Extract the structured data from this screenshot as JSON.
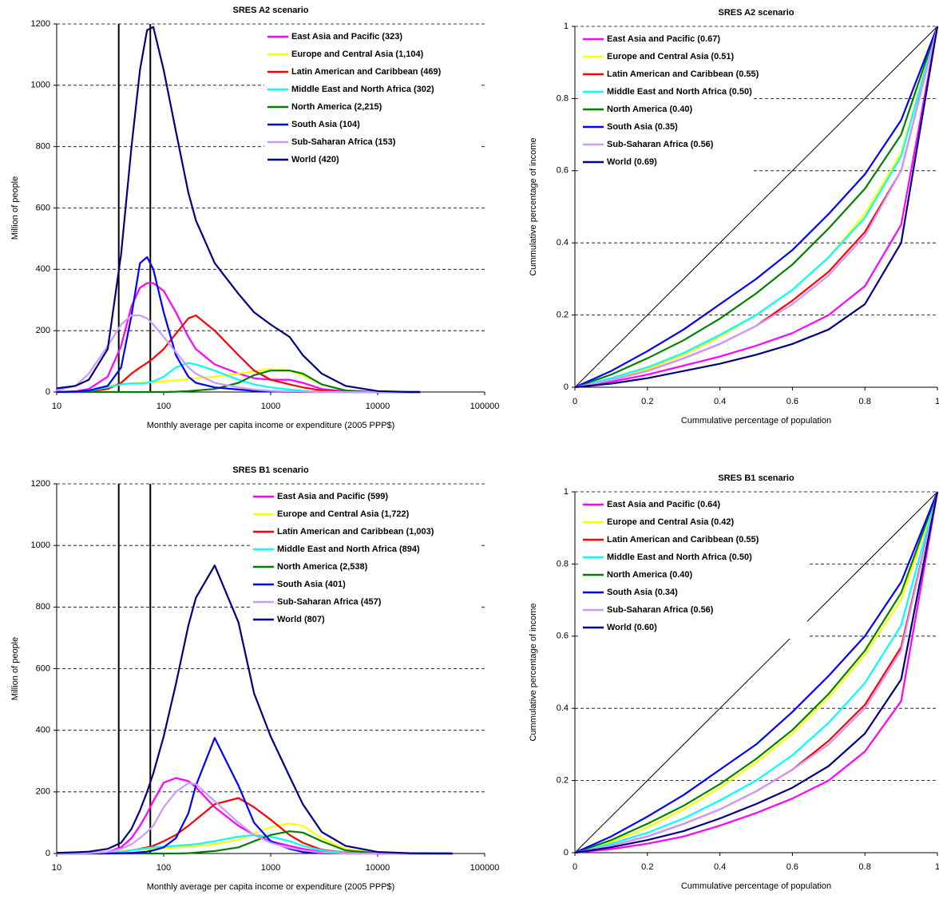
{
  "chart_data": [
    {
      "type": "line",
      "title": "SRES A2 scenario",
      "x_label": "Monthly average per capita income or expenditure (2005 PPP$)",
      "y_label": "Million of people",
      "log_x": true,
      "xlim": [
        10,
        100000
      ],
      "ylim": [
        0,
        1200
      ],
      "xticks": [
        10,
        100,
        1000,
        10000,
        100000
      ],
      "yticks": [
        0,
        200,
        400,
        600,
        800,
        1000,
        1200
      ],
      "grid": true,
      "legend": "upper right",
      "vlines": [
        38,
        75
      ],
      "x": [
        10,
        15,
        20,
        30,
        40,
        50,
        60,
        70,
        80,
        100,
        130,
        170,
        200,
        300,
        500,
        700,
        1000,
        1500,
        2000,
        3000,
        5000,
        10000,
        20000,
        25000
      ],
      "series": [
        {
          "name": "East Asia and Pacific (323)",
          "color": "#ff00ff",
          "values": [
            0,
            2,
            10,
            50,
            150,
            280,
            340,
            355,
            355,
            330,
            260,
            180,
            140,
            90,
            60,
            45,
            40,
            40,
            30,
            10,
            2,
            0,
            0,
            0
          ]
        },
        {
          "name": "Europe and Central Asia (1,104)",
          "color": "#ffff00",
          "values": [
            0,
            0,
            5,
            20,
            25,
            28,
            30,
            30,
            32,
            35,
            38,
            42,
            45,
            50,
            60,
            68,
            75,
            70,
            55,
            25,
            5,
            0,
            0,
            0
          ]
        },
        {
          "name": "Latin American and Caribbean (469)",
          "color": "#ff0000",
          "values": [
            0,
            0,
            2,
            10,
            30,
            60,
            80,
            95,
            110,
            140,
            190,
            240,
            250,
            200,
            120,
            70,
            40,
            25,
            15,
            5,
            1,
            0,
            0,
            0
          ]
        },
        {
          "name": "Middle East and North Africa (302)",
          "color": "#00ffff",
          "values": [
            0,
            0,
            5,
            15,
            25,
            28,
            28,
            30,
            35,
            50,
            80,
            95,
            90,
            70,
            40,
            25,
            15,
            8,
            4,
            1,
            0,
            0,
            0,
            0
          ]
        },
        {
          "name": "North America (2,215)",
          "color": "#008000",
          "values": [
            0,
            0,
            0,
            0,
            0,
            0,
            0,
            0,
            0,
            0,
            1,
            3,
            5,
            10,
            30,
            55,
            70,
            70,
            60,
            25,
            5,
            0,
            0,
            0
          ]
        },
        {
          "name": "South Asia (104)",
          "color": "#0000ff",
          "values": [
            0,
            2,
            5,
            20,
            80,
            250,
            420,
            440,
            400,
            260,
            120,
            50,
            30,
            15,
            8,
            4,
            2,
            1,
            0,
            0,
            0,
            0,
            0,
            0
          ]
        },
        {
          "name": "Sub-Saharan Africa (153)",
          "color": "#cc99ff",
          "values": [
            5,
            20,
            60,
            150,
            220,
            250,
            250,
            240,
            220,
            180,
            130,
            80,
            60,
            30,
            15,
            8,
            4,
            2,
            1,
            0,
            0,
            0,
            0,
            0
          ]
        },
        {
          "name": "World (420)",
          "color": "#000080",
          "values": [
            12,
            20,
            40,
            140,
            450,
            800,
            1050,
            1180,
            1190,
            1050,
            850,
            650,
            560,
            420,
            320,
            260,
            220,
            180,
            120,
            60,
            20,
            3,
            0,
            0
          ]
        }
      ]
    },
    {
      "type": "line",
      "title": "SRES A2 scenario",
      "x_label": "Cummulative percentage of population",
      "y_label": "Cummulative percentage of income",
      "log_x": false,
      "xlim": [
        0,
        1
      ],
      "ylim": [
        0,
        1
      ],
      "xticks": [
        0,
        0.2,
        0.4,
        0.6,
        0.8,
        1
      ],
      "yticks": [
        0,
        0.2,
        0.4,
        0.6,
        0.8,
        1
      ],
      "grid": true,
      "legend": "upper left",
      "equality_line": true,
      "x": [
        0,
        0.1,
        0.2,
        0.3,
        0.4,
        0.5,
        0.6,
        0.7,
        0.8,
        0.9,
        1
      ],
      "series": [
        {
          "name": "East Asia and Pacific (0.67)",
          "color": "#ff00ff",
          "values": [
            0,
            0.015,
            0.035,
            0.06,
            0.085,
            0.115,
            0.15,
            0.2,
            0.28,
            0.45,
            1
          ]
        },
        {
          "name": "Europe and Central Asia (0.51)",
          "color": "#ffff00",
          "values": [
            0,
            0.02,
            0.05,
            0.09,
            0.14,
            0.2,
            0.27,
            0.36,
            0.48,
            0.65,
            1
          ]
        },
        {
          "name": "Latin American and Caribbean (0.55)",
          "color": "#ff0000",
          "values": [
            0,
            0.02,
            0.045,
            0.08,
            0.12,
            0.17,
            0.24,
            0.32,
            0.43,
            0.6,
            1
          ]
        },
        {
          "name": "Middle East and North Africa (0.50)",
          "color": "#00ffff",
          "values": [
            0,
            0.025,
            0.055,
            0.095,
            0.145,
            0.2,
            0.27,
            0.36,
            0.47,
            0.64,
            1
          ]
        },
        {
          "name": "North America (0.40)",
          "color": "#008000",
          "values": [
            0,
            0.035,
            0.08,
            0.13,
            0.19,
            0.26,
            0.34,
            0.44,
            0.55,
            0.7,
            1
          ]
        },
        {
          "name": "South Asia (0.35)",
          "color": "#0000ff",
          "values": [
            0,
            0.045,
            0.1,
            0.16,
            0.23,
            0.3,
            0.38,
            0.48,
            0.59,
            0.74,
            1
          ]
        },
        {
          "name": "Sub-Saharan Africa (0.56)",
          "color": "#cc99ff",
          "values": [
            0,
            0.02,
            0.045,
            0.08,
            0.12,
            0.17,
            0.23,
            0.31,
            0.42,
            0.6,
            1
          ]
        },
        {
          "name": "World (0.69)",
          "color": "#000080",
          "values": [
            0,
            0.01,
            0.025,
            0.045,
            0.065,
            0.09,
            0.12,
            0.16,
            0.23,
            0.4,
            1
          ]
        }
      ]
    },
    {
      "type": "line",
      "title": "SRES B1 scenario",
      "x_label": "Monthly average per capita income or expenditure (2005 PPP$)",
      "y_label": "Million of people",
      "log_x": true,
      "xlim": [
        10,
        100000
      ],
      "ylim": [
        0,
        1200
      ],
      "xticks": [
        10,
        100,
        1000,
        10000,
        100000
      ],
      "yticks": [
        0,
        200,
        400,
        600,
        800,
        1000,
        1200
      ],
      "grid": true,
      "legend": "upper right",
      "vlines": [
        38,
        75
      ],
      "x": [
        10,
        15,
        20,
        30,
        40,
        50,
        60,
        70,
        80,
        100,
        130,
        170,
        200,
        300,
        500,
        700,
        1000,
        1500,
        2000,
        3000,
        5000,
        10000,
        20000,
        50000
      ],
      "series": [
        {
          "name": "East Asia and Pacific (599)",
          "color": "#ff00ff",
          "values": [
            0,
            0,
            1,
            5,
            20,
            50,
            90,
            130,
            170,
            230,
            245,
            235,
            215,
            150,
            90,
            60,
            40,
            25,
            15,
            5,
            1,
            0,
            0,
            0
          ]
        },
        {
          "name": "Europe and Central Asia (1,722)",
          "color": "#ffff00",
          "values": [
            0,
            0,
            0,
            5,
            8,
            10,
            12,
            14,
            15,
            17,
            20,
            22,
            25,
            30,
            45,
            65,
            85,
            98,
            90,
            50,
            15,
            2,
            0,
            0
          ]
        },
        {
          "name": "Latin American and Caribbean (1,003)",
          "color": "#ff0000",
          "values": [
            0,
            0,
            0,
            2,
            5,
            10,
            15,
            20,
            25,
            40,
            60,
            90,
            110,
            160,
            180,
            150,
            110,
            60,
            35,
            12,
            3,
            0,
            0,
            0
          ]
        },
        {
          "name": "Middle East and North Africa (894)",
          "color": "#00ffff",
          "values": [
            0,
            0,
            0,
            2,
            5,
            10,
            14,
            17,
            20,
            22,
            25,
            28,
            30,
            40,
            55,
            60,
            55,
            40,
            25,
            10,
            2,
            0,
            0,
            0
          ]
        },
        {
          "name": "North America (2,538)",
          "color": "#008000",
          "values": [
            0,
            0,
            0,
            0,
            0,
            0,
            0,
            0,
            0,
            0,
            0,
            1,
            3,
            8,
            20,
            40,
            60,
            72,
            68,
            40,
            10,
            1,
            0,
            0
          ]
        },
        {
          "name": "South Asia (401)",
          "color": "#0000ff",
          "values": [
            0,
            0,
            0,
            0,
            1,
            2,
            4,
            6,
            10,
            20,
            50,
            130,
            220,
            375,
            220,
            100,
            40,
            15,
            5,
            1,
            0,
            0,
            0,
            0
          ]
        },
        {
          "name": "Sub-Saharan Africa (457)",
          "color": "#cc99ff",
          "values": [
            0,
            0,
            1,
            5,
            15,
            30,
            50,
            70,
            90,
            150,
            200,
            228,
            225,
            170,
            100,
            60,
            35,
            18,
            10,
            3,
            0,
            0,
            0,
            0
          ]
        },
        {
          "name": "World (807)",
          "color": "#000080",
          "values": [
            2,
            4,
            6,
            15,
            35,
            80,
            140,
            200,
            260,
            380,
            550,
            740,
            830,
            935,
            750,
            520,
            380,
            250,
            160,
            70,
            25,
            5,
            1,
            0
          ]
        }
      ]
    },
    {
      "type": "line",
      "title": "SRES B1 scenario",
      "x_label": "Cummulative percentage of population",
      "y_label": "Cummulative percentage of income",
      "log_x": false,
      "xlim": [
        0,
        1
      ],
      "ylim": [
        0,
        1
      ],
      "xticks": [
        0,
        0.2,
        0.4,
        0.6,
        0.8,
        1
      ],
      "yticks": [
        0,
        0.2,
        0.4,
        0.6,
        0.8,
        1
      ],
      "grid": true,
      "legend": "upper left",
      "equality_line": true,
      "x": [
        0,
        0.1,
        0.2,
        0.3,
        0.4,
        0.5,
        0.6,
        0.7,
        0.8,
        0.9,
        1
      ],
      "series": [
        {
          "name": "East Asia and Pacific (0.64)",
          "color": "#ff00ff",
          "values": [
            0,
            0.01,
            0.025,
            0.045,
            0.075,
            0.11,
            0.15,
            0.2,
            0.28,
            0.42,
            1
          ]
        },
        {
          "name": "Europe and Central Asia (0.42)",
          "color": "#ffff00",
          "values": [
            0,
            0.03,
            0.07,
            0.12,
            0.18,
            0.25,
            0.33,
            0.43,
            0.55,
            0.7,
            1
          ]
        },
        {
          "name": "Latin American and Caribbean (0.55)",
          "color": "#ff0000",
          "values": [
            0,
            0.02,
            0.045,
            0.08,
            0.12,
            0.17,
            0.23,
            0.31,
            0.41,
            0.57,
            1
          ]
        },
        {
          "name": "Middle East and North Africa (0.50)",
          "color": "#00ffff",
          "values": [
            0,
            0.025,
            0.055,
            0.095,
            0.145,
            0.2,
            0.27,
            0.36,
            0.47,
            0.63,
            1
          ]
        },
        {
          "name": "North America (0.40)",
          "color": "#008000",
          "values": [
            0,
            0.035,
            0.08,
            0.13,
            0.19,
            0.26,
            0.34,
            0.44,
            0.56,
            0.72,
            1
          ]
        },
        {
          "name": "South Asia (0.34)",
          "color": "#0000ff",
          "values": [
            0,
            0.045,
            0.1,
            0.16,
            0.23,
            0.3,
            0.39,
            0.49,
            0.6,
            0.75,
            1
          ]
        },
        {
          "name": "Sub-Saharan Africa (0.56)",
          "color": "#cc99ff",
          "values": [
            0,
            0.02,
            0.045,
            0.08,
            0.12,
            0.17,
            0.23,
            0.3,
            0.4,
            0.56,
            1
          ]
        },
        {
          "name": "World (0.60)",
          "color": "#000080",
          "values": [
            0,
            0.015,
            0.035,
            0.06,
            0.095,
            0.135,
            0.18,
            0.24,
            0.33,
            0.48,
            1
          ]
        }
      ]
    }
  ]
}
